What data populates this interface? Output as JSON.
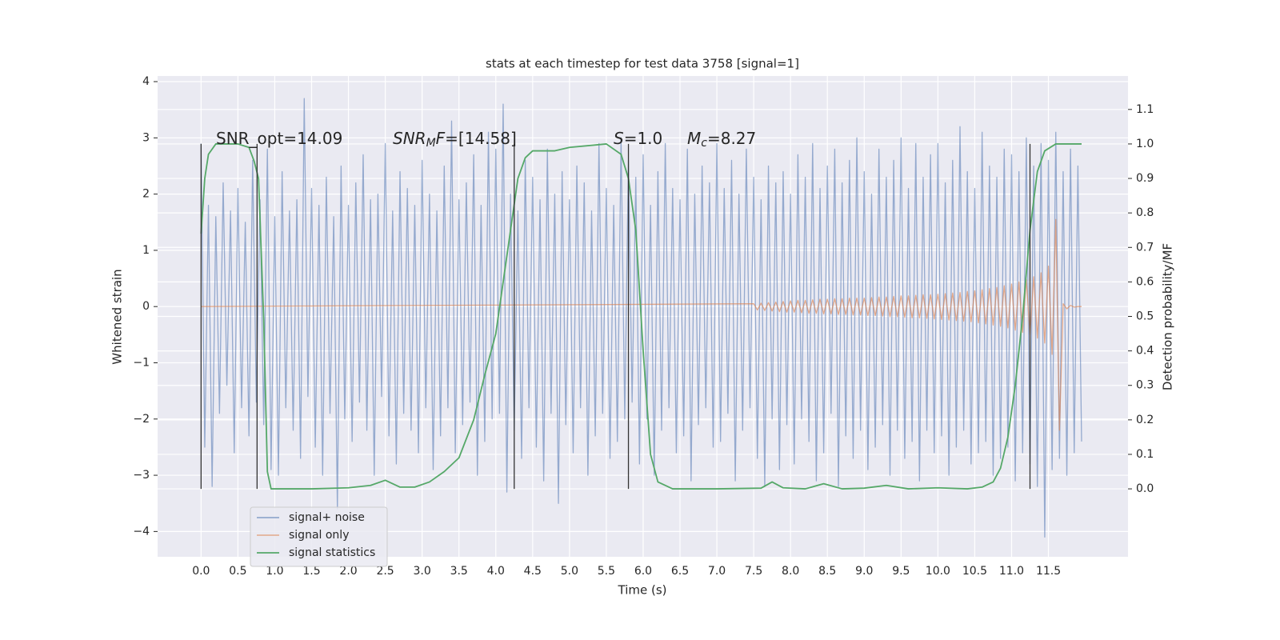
{
  "chart_data": {
    "type": "line",
    "title": "stats at each timestep for test data 3758 [signal=1]",
    "xlabel": "Time (s)",
    "ylabel": "Whitened strain",
    "y2label": "Detection probability/MF",
    "xlim": [
      -0.59,
      12.58
    ],
    "ylim": [
      -4.45,
      4.1
    ],
    "y2lim": [
      -0.197,
      1.197
    ],
    "xticks": [
      {
        "value": 0,
        "label": "0.0"
      },
      0.5,
      {
        "value": 1,
        "label": "1.0"
      },
      1.5,
      {
        "value": 2,
        "label": "2.0"
      },
      2.5,
      {
        "value": 3,
        "label": "3.0"
      },
      3.5,
      {
        "value": 4,
        "label": "4.0"
      },
      4.5,
      {
        "value": 5,
        "label": "5.0"
      },
      5.5,
      {
        "value": 6,
        "label": "6.0"
      },
      6.5,
      {
        "value": 7,
        "label": "7.0"
      },
      7.5,
      {
        "value": 8,
        "label": "8.0"
      },
      8.5,
      {
        "value": 9,
        "label": "9.0"
      },
      9.5,
      {
        "value": 10,
        "label": "10.0"
      },
      10.5,
      {
        "value": 11,
        "label": "11.0"
      },
      11.5
    ],
    "yticks": [
      {
        "value": -4,
        "label": "−4"
      },
      {
        "value": -3,
        "label": "−3"
      },
      {
        "value": -2,
        "label": "−2"
      },
      {
        "value": -1,
        "label": "−1"
      },
      0,
      1,
      2,
      3,
      4
    ],
    "y2ticks": [
      {
        "value": 0,
        "label": "0.0"
      },
      0.1,
      0.2,
      0.3,
      0.4,
      0.5,
      0.6,
      0.7,
      0.8,
      0.9,
      {
        "value": 1,
        "label": "1.0"
      },
      1.1
    ],
    "grid": true,
    "legend": "lower left",
    "annotations": [
      [
        {
          "text": "SNR_opt=14.09"
        }
      ],
      [
        {
          "text": "SNR",
          "italic": true
        },
        {
          "text": "M",
          "italic": true,
          "sub": true
        },
        {
          "text": "F",
          "italic": true
        },
        {
          "text": "=[14.58]"
        }
      ],
      [
        {
          "text": "S",
          "italic": true
        },
        {
          "text": "=1.0"
        }
      ],
      [
        {
          "text": "M",
          "italic": true
        },
        {
          "text": "c",
          "italic": true,
          "sub": true
        },
        {
          "text": "=8.27"
        }
      ]
    ],
    "vlines": {
      "x": [
        0,
        0.76,
        4.25,
        5.8,
        11.25
      ],
      "ymin": 0,
      "ymax": 1,
      "axis": "y2",
      "color": "#333333"
    },
    "series": [
      {
        "name": "signal+ noise",
        "color": "#4c72b0",
        "x": [
          0,
          0.05,
          0.1,
          0.15,
          0.2,
          0.25,
          0.3,
          0.35,
          0.4,
          0.45,
          0.5,
          0.55,
          0.6,
          0.65,
          0.7,
          0.75,
          0.8,
          0.85,
          0.9,
          0.95,
          1,
          1.05,
          1.1,
          1.15,
          1.2,
          1.25,
          1.3,
          1.35,
          1.4,
          1.45,
          1.5,
          1.55,
          1.6,
          1.65,
          1.7,
          1.75,
          1.8,
          1.85,
          1.9,
          1.95,
          2,
          2.05,
          2.1,
          2.15,
          2.2,
          2.25,
          2.3,
          2.35,
          2.4,
          2.45,
          2.5,
          2.55,
          2.6,
          2.65,
          2.7,
          2.75,
          2.8,
          2.85,
          2.9,
          2.95,
          3,
          3.05,
          3.1,
          3.15,
          3.2,
          3.25,
          3.3,
          3.35,
          3.4,
          3.45,
          3.5,
          3.55,
          3.6,
          3.65,
          3.7,
          3.75,
          3.8,
          3.85,
          3.9,
          3.95,
          4,
          4.05,
          4.1,
          4.15,
          4.2,
          4.25,
          4.3,
          4.35,
          4.4,
          4.45,
          4.5,
          4.55,
          4.6,
          4.65,
          4.7,
          4.75,
          4.8,
          4.85,
          4.9,
          4.95,
          5,
          5.05,
          5.1,
          5.15,
          5.2,
          5.25,
          5.3,
          5.35,
          5.4,
          5.45,
          5.5,
          5.55,
          5.6,
          5.65,
          5.7,
          5.75,
          5.8,
          5.85,
          5.9,
          5.95,
          6,
          6.05,
          6.1,
          6.15,
          6.2,
          6.25,
          6.3,
          6.35,
          6.4,
          6.45,
          6.5,
          6.55,
          6.6,
          6.65,
          6.7,
          6.75,
          6.8,
          6.85,
          6.9,
          6.95,
          7,
          7.05,
          7.1,
          7.15,
          7.2,
          7.25,
          7.3,
          7.35,
          7.4,
          7.45,
          7.5,
          7.55,
          7.6,
          7.65,
          7.7,
          7.75,
          7.8,
          7.85,
          7.9,
          7.95,
          8,
          8.05,
          8.1,
          8.15,
          8.2,
          8.25,
          8.3,
          8.35,
          8.4,
          8.45,
          8.5,
          8.55,
          8.6,
          8.65,
          8.7,
          8.75,
          8.8,
          8.85,
          8.9,
          8.95,
          9,
          9.05,
          9.1,
          9.15,
          9.2,
          9.25,
          9.3,
          9.35,
          9.4,
          9.45,
          9.5,
          9.55,
          9.6,
          9.65,
          9.7,
          9.75,
          9.8,
          9.85,
          9.9,
          9.95,
          10,
          10.05,
          10.1,
          10.15,
          10.2,
          10.25,
          10.3,
          10.35,
          10.4,
          10.45,
          10.5,
          10.55,
          10.6,
          10.65,
          10.7,
          10.75,
          10.8,
          10.85,
          10.9,
          10.95,
          11,
          11.05,
          11.1,
          11.15,
          11.2,
          11.25,
          11.3,
          11.35,
          11.4,
          11.45,
          11.5,
          11.55,
          11.6,
          11.65,
          11.7,
          11.75,
          11.8,
          11.85,
          11.9,
          11.95
        ],
        "values": [
          2.9,
          -2.5,
          1.8,
          -3.2,
          1.6,
          -1.9,
          2.2,
          -1.4,
          1.7,
          -2.6,
          2.1,
          -1.8,
          1.5,
          -2.3,
          2.6,
          -1.7,
          1.9,
          -2.1,
          2.8,
          -2.9,
          1.6,
          -3.0,
          2.4,
          -1.8,
          1.7,
          -2.2,
          1.9,
          -2.7,
          3.7,
          -1.6,
          2.1,
          -2.5,
          1.8,
          -3.0,
          2.3,
          -1.9,
          1.6,
          -3.6,
          2.5,
          -2.0,
          1.8,
          -2.4,
          2.2,
          -1.7,
          2.7,
          -2.2,
          1.9,
          -3.0,
          2.0,
          -1.6,
          2.9,
          -2.3,
          1.7,
          -2.8,
          2.4,
          -1.9,
          2.1,
          -2.2,
          1.8,
          -2.6,
          2.6,
          -1.8,
          2.0,
          -2.9,
          1.7,
          -2.3,
          2.5,
          -1.8,
          3.3,
          -2.6,
          1.9,
          -2.1,
          2.2,
          -1.7,
          2.7,
          -3.0,
          1.8,
          -2.4,
          3.1,
          -2.0,
          2.8,
          -1.9,
          3.6,
          -3.3,
          2.0,
          -2.2,
          1.7,
          -2.7,
          2.6,
          -1.8,
          2.3,
          -2.5,
          1.9,
          -3.1,
          2.8,
          -1.9,
          2.0,
          -3.5,
          2.4,
          -2.1,
          1.9,
          -2.6,
          2.5,
          -1.8,
          2.2,
          -3.0,
          1.7,
          -2.3,
          2.9,
          -1.9,
          2.1,
          -2.7,
          1.8,
          -2.4,
          3.0,
          -2.0,
          2.6,
          -1.7,
          2.3,
          -2.8,
          2.7,
          -2.0,
          1.8,
          -3.0,
          2.4,
          -2.2,
          2.9,
          -1.8,
          2.1,
          -2.6,
          1.9,
          -2.3,
          2.8,
          -3.1,
          2.0,
          -2.1,
          2.5,
          -1.8,
          2.2,
          -2.5,
          2.9,
          -2.4,
          2.1,
          -1.9,
          2.6,
          -3.1,
          2.0,
          -2.2,
          2.8,
          -1.8,
          2.3,
          -2.7,
          1.9,
          -3.2,
          2.5,
          -2.0,
          2.2,
          -2.9,
          2.4,
          -2.1,
          2.0,
          -2.8,
          2.7,
          -2.0,
          2.3,
          -2.4,
          2.9,
          -3.1,
          2.1,
          -2.6,
          2.5,
          -1.9,
          2.8,
          -3.2,
          2.2,
          -2.3,
          2.6,
          -2.7,
          3.0,
          -2.2,
          2.4,
          -2.9,
          2.0,
          -2.5,
          2.8,
          -2.1,
          2.3,
          -3.0,
          2.6,
          -2.2,
          3.0,
          -2.7,
          2.1,
          -2.4,
          2.9,
          -3.1,
          2.3,
          -2.2,
          2.7,
          -2.6,
          2.9,
          -2.3,
          2.2,
          -3.0,
          2.6,
          -2.5,
          3.2,
          -2.2,
          2.4,
          -2.8,
          2.1,
          -2.6,
          3.1,
          -2.4,
          2.5,
          -3.0,
          2.3,
          -2.7,
          2.8,
          -2.5,
          2.7,
          -3.1,
          2.4,
          -2.6,
          3.0,
          -2.8,
          2.5,
          -3.2,
          2.9,
          -4.1,
          2.6,
          -2.9,
          3.1,
          -2.7,
          2.4,
          -3.0,
          2.8,
          -2.6,
          2.5,
          -2.4
        ]
      },
      {
        "name": "signal only",
        "color": "#dd8452",
        "x": [
          0,
          7.5,
          7.55,
          7.6,
          7.65,
          7.7,
          7.75,
          7.8,
          7.85,
          7.9,
          7.95,
          8,
          8.05,
          8.1,
          8.15,
          8.2,
          8.25,
          8.3,
          8.35,
          8.4,
          8.45,
          8.5,
          8.55,
          8.6,
          8.65,
          8.7,
          8.75,
          8.8,
          8.85,
          8.9,
          8.95,
          9,
          9.05,
          9.1,
          9.15,
          9.2,
          9.25,
          9.3,
          9.35,
          9.4,
          9.45,
          9.5,
          9.55,
          9.6,
          9.65,
          9.7,
          9.75,
          9.8,
          9.85,
          9.9,
          9.95,
          10,
          10.05,
          10.1,
          10.15,
          10.2,
          10.25,
          10.3,
          10.35,
          10.4,
          10.45,
          10.5,
          10.55,
          10.6,
          10.65,
          10.7,
          10.75,
          10.8,
          10.85,
          10.9,
          10.95,
          11,
          11.05,
          11.1,
          11.15,
          11.2,
          11.25,
          11.3,
          11.35,
          11.4,
          11.45,
          11.5,
          11.55,
          11.6,
          11.65,
          11.7,
          11.75,
          11.8,
          11.85,
          11.9,
          11.95
        ],
        "values": [
          0,
          0.05,
          -0.06,
          0.06,
          -0.07,
          0.07,
          -0.08,
          0.08,
          -0.09,
          0.09,
          -0.1,
          0.1,
          -0.1,
          0.11,
          -0.11,
          0.11,
          -0.12,
          0.12,
          -0.12,
          0.13,
          -0.13,
          0.13,
          -0.13,
          0.14,
          -0.14,
          0.14,
          -0.14,
          0.15,
          -0.15,
          0.15,
          -0.15,
          0.15,
          -0.16,
          0.16,
          -0.16,
          0.17,
          -0.17,
          0.17,
          -0.18,
          0.18,
          -0.18,
          0.19,
          -0.19,
          0.19,
          -0.2,
          0.2,
          -0.2,
          0.21,
          -0.21,
          0.21,
          -0.22,
          0.22,
          -0.23,
          0.23,
          -0.24,
          0.24,
          -0.25,
          0.25,
          -0.26,
          0.27,
          -0.27,
          0.28,
          -0.29,
          0.3,
          -0.31,
          0.32,
          -0.33,
          0.34,
          -0.35,
          0.37,
          -0.38,
          0.4,
          -0.42,
          0.44,
          -0.46,
          0.48,
          -0.5,
          0.53,
          -0.56,
          0.6,
          -0.65,
          0.72,
          -0.85,
          1.55,
          -2.2,
          0.05,
          -0.04,
          0.02,
          -0.01,
          0,
          0
        ]
      },
      {
        "name": "signal statistics",
        "color": "#55a868",
        "axis": "y2",
        "x": [
          0,
          0.05,
          0.1,
          0.2,
          0.3,
          0.5,
          0.65,
          0.72,
          0.78,
          0.85,
          0.9,
          0.95,
          1.0,
          1.5,
          2.0,
          2.3,
          2.5,
          2.7,
          2.9,
          3.1,
          3.3,
          3.5,
          3.7,
          3.85,
          4.0,
          4.1,
          4.2,
          4.3,
          4.4,
          4.5,
          4.8,
          5.0,
          5.5,
          5.7,
          5.8,
          5.9,
          6.0,
          6.1,
          6.2,
          6.4,
          7.0,
          7.6,
          7.75,
          7.9,
          8.2,
          8.45,
          8.7,
          9.0,
          9.3,
          9.6,
          10.0,
          10.4,
          10.6,
          10.75,
          10.85,
          10.95,
          11.05,
          11.15,
          11.25,
          11.35,
          11.45,
          11.6,
          11.95
        ],
        "values": [
          0.74,
          0.9,
          0.97,
          1.0,
          1.0,
          1.0,
          0.99,
          0.95,
          0.9,
          0.49,
          0.05,
          0.0,
          0.0,
          0.0,
          0.003,
          0.01,
          0.025,
          0.005,
          0.005,
          0.02,
          0.05,
          0.09,
          0.2,
          0.33,
          0.45,
          0.6,
          0.75,
          0.9,
          0.96,
          0.98,
          0.98,
          0.99,
          1.0,
          0.97,
          0.9,
          0.75,
          0.4,
          0.1,
          0.02,
          0.0,
          0.0,
          0.002,
          0.02,
          0.003,
          0.0,
          0.015,
          0.0,
          0.002,
          0.01,
          0.0,
          0.003,
          0.0,
          0.005,
          0.02,
          0.06,
          0.15,
          0.3,
          0.5,
          0.75,
          0.92,
          0.98,
          1.0,
          1.0
        ]
      }
    ]
  }
}
